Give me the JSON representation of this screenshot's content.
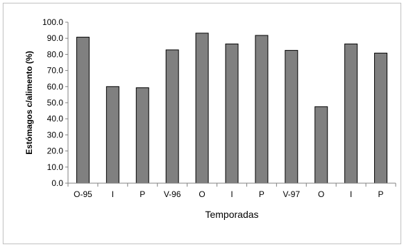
{
  "chart_data": {
    "type": "bar",
    "categories": [
      "O-95",
      "I",
      "P",
      "V-96",
      "O",
      "I",
      "P",
      "V-97",
      "O",
      "I",
      "P"
    ],
    "values": [
      90.7,
      60.0,
      59.3,
      82.8,
      93.2,
      86.5,
      91.8,
      82.5,
      47.5,
      86.5,
      80.8
    ],
    "title": "",
    "xlabel": "Temporadas",
    "ylabel": "Estómagos c/alimento (%)",
    "ylim": [
      0,
      100
    ],
    "yticks": [
      "0.0",
      "10.0",
      "20.0",
      "30.0",
      "40.0",
      "50.0",
      "60.0",
      "70.0",
      "80.0",
      "90.0",
      "100.0"
    ],
    "grid": false,
    "legend": "none",
    "bar_color": "#808080",
    "bar_stroke": "#000000"
  }
}
